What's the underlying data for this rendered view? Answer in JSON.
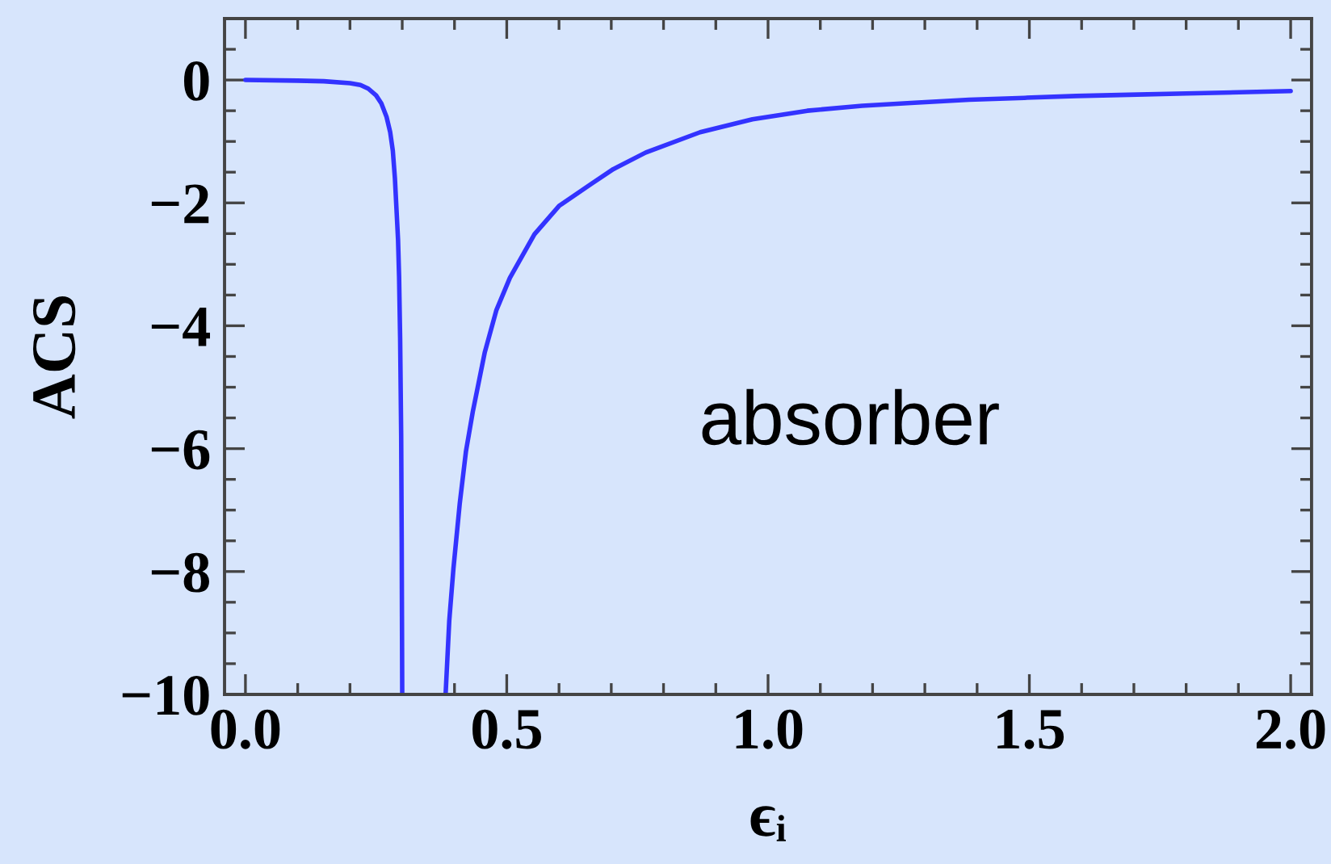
{
  "chart_data": {
    "type": "line",
    "xlabel": "ϵᵢ",
    "ylabel": "ACS",
    "annotations": [
      "absorber"
    ],
    "x": [
      0.0,
      0.1,
      0.15,
      0.2,
      0.22,
      0.235,
      0.25,
      0.26,
      0.27,
      0.277,
      0.282,
      0.286,
      0.289,
      0.292,
      0.294,
      0.296,
      0.298,
      0.299,
      0.3,
      0.34,
      0.383,
      0.39,
      0.398,
      0.41,
      0.422,
      0.435,
      0.458,
      0.48,
      0.506,
      0.553,
      0.6,
      0.66,
      0.704,
      0.766,
      0.87,
      0.97,
      1.075,
      1.18,
      1.28,
      1.385,
      1.49,
      1.59,
      1.69,
      1.8,
      2.0
    ],
    "series": [
      {
        "color": "#3333ff",
        "values": [
          0.0,
          -0.01,
          -0.02,
          -0.05,
          -0.08,
          -0.14,
          -0.25,
          -0.38,
          -0.6,
          -0.85,
          -1.15,
          -1.6,
          -2.1,
          -2.6,
          -3.2,
          -4.2,
          -5.8,
          -7.5,
          -10.0,
          null,
          -10.0,
          -8.8,
          -7.95,
          -6.9,
          -6.04,
          -5.4,
          -4.43,
          -3.75,
          -3.22,
          -2.51,
          -2.05,
          -1.7,
          -1.45,
          -1.18,
          -0.85,
          -0.64,
          -0.5,
          -0.42,
          -0.37,
          -0.32,
          -0.29,
          -0.26,
          -0.24,
          -0.22,
          -0.18
        ]
      }
    ],
    "xlim": [
      -0.04,
      2.04
    ],
    "ylim": [
      -10,
      1
    ],
    "xticks": [
      {
        "value": 0,
        "label": "0.0"
      },
      {
        "value": 0.1,
        "label": null
      },
      {
        "value": 0.2,
        "label": null
      },
      {
        "value": 0.3,
        "label": null
      },
      {
        "value": 0.4,
        "label": null
      },
      0.5,
      {
        "value": 0.6,
        "label": null
      },
      {
        "value": 0.7,
        "label": null
      },
      {
        "value": 0.8,
        "label": null
      },
      {
        "value": 0.9,
        "label": null
      },
      {
        "value": 1,
        "label": "1.0"
      },
      {
        "value": 1.1,
        "label": null
      },
      {
        "value": 1.2,
        "label": null
      },
      {
        "value": 1.3,
        "label": null
      },
      {
        "value": 1.4,
        "label": null
      },
      1.5,
      {
        "value": 1.6,
        "label": null
      },
      {
        "value": 1.7,
        "label": null
      },
      {
        "value": 1.8,
        "label": null
      },
      {
        "value": 1.9,
        "label": null
      },
      {
        "value": 2,
        "label": "2.0"
      }
    ],
    "yticks": [
      {
        "value": -10,
        "label": "−10"
      },
      {
        "value": -9.5,
        "label": null
      },
      {
        "value": -9,
        "label": null
      },
      {
        "value": -8.5,
        "label": null
      },
      {
        "value": -8,
        "label": "−8"
      },
      {
        "value": -7.5,
        "label": null
      },
      {
        "value": -7,
        "label": null
      },
      {
        "value": -6.5,
        "label": null
      },
      {
        "value": -6,
        "label": "−6"
      },
      {
        "value": -5.5,
        "label": null
      },
      {
        "value": -5,
        "label": null
      },
      {
        "value": -4.5,
        "label": null
      },
      {
        "value": -4,
        "label": "−4"
      },
      {
        "value": -3.5,
        "label": null
      },
      {
        "value": -3,
        "label": null
      },
      {
        "value": -2.5,
        "label": null
      },
      {
        "value": -2,
        "label": "−2"
      },
      {
        "value": -1.5,
        "label": null
      },
      {
        "value": -1,
        "label": null
      },
      {
        "value": -0.5,
        "label": null
      },
      0,
      {
        "value": 0.5,
        "label": null
      }
    ],
    "line_style": "solid"
  }
}
